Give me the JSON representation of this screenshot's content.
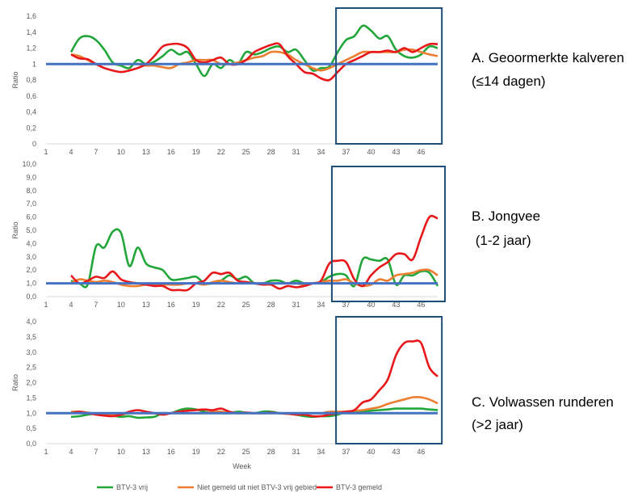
{
  "colors": {
    "green": "#22A63A",
    "orange": "#ED7D31",
    "red": "#E8181A",
    "baseline": "#4472C4",
    "highlight_box": "#1F4E79"
  },
  "labels": {
    "A_line1": "A. Geoormerkte kalveren",
    "A_line2": "(≤14 dagen)",
    "B_line1": "B. Jongvee",
    "B_line2": " (1-2 jaar)",
    "C_line1": "C. Volwassen runderen",
    "C_line2": "(>2 jaar)"
  },
  "legend": {
    "green": "BTV-3 vrij",
    "orange": "Niet gemeld uit niet BTV-3 vrij gebied",
    "red": "BTV-3 gemeld"
  },
  "chart_data": [
    {
      "type": "line",
      "title": "",
      "xlabel": "",
      "ylabel": "Ratio",
      "x_ticks": [
        "1",
        "4",
        "7",
        "10",
        "13",
        "16",
        "19",
        "22",
        "25",
        "28",
        "31",
        "34",
        "37",
        "40",
        "43",
        "46"
      ],
      "y_ticks": [
        "0",
        "0,2",
        "0,4",
        "0,6",
        "0,8",
        "1",
        "1,2",
        "1,4",
        "1,6"
      ],
      "ylim": [
        0,
        1.6
      ],
      "xlim": [
        1,
        48
      ],
      "reference_line": 1,
      "highlight_weeks": [
        35.8,
        48.5
      ],
      "series": [
        {
          "name": "BTV-3 vrij",
          "color": "green",
          "x": [
            4,
            5,
            6,
            7,
            8,
            9,
            10,
            11,
            12,
            13,
            14,
            15,
            16,
            17,
            18,
            19,
            20,
            21,
            22,
            23,
            24,
            25,
            26,
            27,
            28,
            29,
            30,
            31,
            32,
            33,
            34,
            35,
            36,
            37,
            38,
            39,
            40,
            41,
            42,
            43,
            44,
            45,
            46,
            47,
            48
          ],
          "y": [
            1.15,
            1.32,
            1.35,
            1.3,
            1.18,
            1.02,
            0.98,
            0.95,
            1.05,
            1.0,
            1.03,
            1.1,
            1.18,
            1.12,
            1.15,
            1.0,
            0.85,
            1.0,
            0.95,
            1.05,
            1.0,
            1.15,
            1.12,
            1.15,
            1.2,
            1.22,
            1.15,
            1.18,
            1.05,
            0.92,
            0.95,
            0.97,
            1.15,
            1.3,
            1.35,
            1.48,
            1.42,
            1.32,
            1.35,
            1.18,
            1.1,
            1.08,
            1.12,
            1.22,
            1.2
          ]
        },
        {
          "name": "Niet gemeld uit niet BTV-3 vrij gebied",
          "color": "orange",
          "x": [
            4,
            5,
            6,
            7,
            8,
            9,
            10,
            11,
            12,
            13,
            14,
            15,
            16,
            17,
            18,
            19,
            20,
            21,
            22,
            23,
            24,
            25,
            26,
            27,
            28,
            29,
            30,
            31,
            32,
            33,
            34,
            35,
            36,
            37,
            38,
            39,
            40,
            41,
            42,
            43,
            44,
            45,
            46,
            47,
            48
          ],
          "y": [
            1.12,
            1.1,
            1.05,
            1.0,
            1.0,
            1.0,
            1.0,
            1.0,
            1.0,
            0.98,
            0.98,
            0.96,
            0.95,
            1.0,
            1.02,
            1.05,
            1.05,
            1.05,
            1.0,
            1.0,
            1.02,
            1.05,
            1.08,
            1.1,
            1.15,
            1.15,
            1.12,
            1.05,
            1.0,
            0.95,
            0.92,
            0.95,
            1.0,
            1.05,
            1.1,
            1.15,
            1.15,
            1.15,
            1.15,
            1.15,
            1.18,
            1.18,
            1.15,
            1.12,
            1.1
          ]
        },
        {
          "name": "BTV-3 gemeld",
          "color": "red",
          "x": [
            4,
            5,
            6,
            7,
            8,
            9,
            10,
            11,
            12,
            13,
            14,
            15,
            16,
            17,
            18,
            19,
            20,
            21,
            22,
            23,
            24,
            25,
            26,
            27,
            28,
            29,
            30,
            31,
            32,
            33,
            34,
            35,
            36,
            37,
            38,
            39,
            40,
            41,
            42,
            43,
            44,
            45,
            46,
            47,
            48
          ],
          "y": [
            1.12,
            1.07,
            1.06,
            1.0,
            0.95,
            0.92,
            0.9,
            0.92,
            0.95,
            1.0,
            1.1,
            1.22,
            1.25,
            1.25,
            1.2,
            1.05,
            1.02,
            1.05,
            1.08,
            1.0,
            1.0,
            1.05,
            1.15,
            1.2,
            1.24,
            1.25,
            1.1,
            1.0,
            0.9,
            0.88,
            0.82,
            0.8,
            0.9,
            1.0,
            1.05,
            1.1,
            1.15,
            1.15,
            1.17,
            1.15,
            1.2,
            1.15,
            1.2,
            1.25,
            1.25
          ]
        }
      ]
    },
    {
      "type": "line",
      "title": "",
      "xlabel": "",
      "ylabel": "Ratio",
      "x_ticks": [
        "1",
        "4",
        "7",
        "10",
        "13",
        "16",
        "19",
        "22",
        "25",
        "28",
        "31",
        "34",
        "37",
        "40",
        "43",
        "46"
      ],
      "y_ticks": [
        "0,0",
        "1,0",
        "2,0",
        "3,0",
        "4,0",
        "5,0",
        "6,0",
        "7,0",
        "8,0",
        "9,0",
        "10,0"
      ],
      "ylim": [
        0,
        10
      ],
      "xlim": [
        1,
        48
      ],
      "reference_line": 1,
      "highlight_weeks": [
        35.3,
        50.5
      ],
      "series": [
        {
          "name": "BTV-3 vrij",
          "color": "green",
          "x": [
            4,
            5,
            6,
            7,
            8,
            9,
            10,
            11,
            12,
            13,
            14,
            15,
            16,
            17,
            18,
            19,
            20,
            21,
            22,
            23,
            24,
            25,
            26,
            27,
            28,
            29,
            30,
            31,
            32,
            33,
            34,
            35,
            36,
            37,
            38,
            39,
            40,
            41,
            42,
            43,
            44,
            45,
            46,
            47,
            48
          ],
          "y": [
            1.2,
            1.0,
            0.9,
            3.8,
            3.7,
            4.9,
            4.8,
            2.3,
            3.7,
            2.5,
            2.2,
            2.0,
            1.3,
            1.3,
            1.4,
            1.5,
            1.0,
            1.0,
            1.2,
            1.6,
            1.3,
            1.5,
            1.0,
            1.0,
            1.2,
            1.2,
            1.0,
            1.2,
            1.0,
            1.0,
            1.1,
            1.5,
            1.7,
            1.6,
            0.8,
            2.8,
            2.8,
            2.7,
            2.8,
            0.9,
            1.6,
            1.6,
            1.9,
            1.8,
            0.8
          ]
        },
        {
          "name": "Niet gemeld uit niet BTV-3 vrij gebied",
          "color": "orange",
          "x": [
            4,
            5,
            6,
            7,
            8,
            9,
            10,
            11,
            12,
            13,
            14,
            15,
            16,
            17,
            18,
            19,
            20,
            21,
            22,
            23,
            24,
            25,
            26,
            27,
            28,
            29,
            30,
            31,
            32,
            33,
            34,
            35,
            36,
            37,
            38,
            39,
            40,
            41,
            42,
            43,
            44,
            45,
            46,
            47,
            48
          ],
          "y": [
            1.0,
            1.3,
            1.2,
            1.1,
            1.2,
            1.1,
            0.9,
            0.8,
            0.8,
            0.9,
            0.9,
            0.9,
            0.9,
            0.9,
            1.0,
            1.0,
            0.9,
            1.1,
            1.2,
            1.1,
            1.0,
            1.1,
            1.0,
            1.0,
            1.0,
            1.0,
            1.0,
            1.0,
            0.9,
            1.0,
            1.1,
            1.2,
            1.2,
            1.3,
            1.0,
            0.8,
            0.9,
            1.3,
            1.2,
            1.6,
            1.7,
            1.8,
            2.0,
            2.0,
            1.6
          ]
        },
        {
          "name": "BTV-3 gemeld",
          "color": "red",
          "x": [
            4,
            5,
            6,
            7,
            8,
            9,
            10,
            11,
            12,
            13,
            14,
            15,
            16,
            17,
            18,
            19,
            20,
            21,
            22,
            23,
            24,
            25,
            26,
            27,
            28,
            29,
            30,
            31,
            32,
            33,
            34,
            35,
            36,
            37,
            38,
            39,
            40,
            41,
            42,
            43,
            44,
            45,
            46,
            47,
            48
          ],
          "y": [
            1.6,
            1.0,
            1.2,
            1.5,
            1.4,
            1.9,
            1.3,
            1.1,
            1.0,
            0.9,
            0.8,
            0.8,
            0.5,
            0.5,
            0.5,
            1.0,
            1.2,
            1.8,
            1.7,
            1.8,
            1.2,
            1.1,
            1.0,
            0.9,
            0.9,
            0.6,
            0.8,
            0.7,
            0.8,
            1.0,
            1.2,
            2.5,
            2.7,
            2.6,
            1.3,
            0.8,
            1.6,
            2.2,
            2.6,
            3.2,
            3.2,
            2.8,
            4.5,
            6.0,
            5.9
          ]
        }
      ]
    },
    {
      "type": "line",
      "title": "",
      "xlabel": "Week",
      "ylabel": "Ratio",
      "x_ticks": [
        "1",
        "4",
        "7",
        "10",
        "13",
        "16",
        "19",
        "22",
        "25",
        "28",
        "31",
        "34",
        "37",
        "40",
        "43",
        "46"
      ],
      "y_ticks": [
        "0,0",
        "0,5",
        "1,0",
        "1,5",
        "2,0",
        "2,5",
        "3,0",
        "3,5",
        "4,0"
      ],
      "ylim": [
        0,
        4
      ],
      "xlim": [
        1,
        48
      ],
      "reference_line": 1,
      "highlight_weeks": [
        35.8,
        48.5
      ],
      "series": [
        {
          "name": "BTV-3 vrij",
          "color": "green",
          "x": [
            4,
            5,
            6,
            7,
            8,
            9,
            10,
            11,
            12,
            13,
            14,
            15,
            16,
            17,
            18,
            19,
            20,
            21,
            22,
            23,
            24,
            25,
            26,
            27,
            28,
            29,
            30,
            31,
            32,
            33,
            34,
            35,
            36,
            37,
            38,
            39,
            40,
            41,
            42,
            43,
            44,
            45,
            46,
            47,
            48
          ],
          "y": [
            0.88,
            0.9,
            0.95,
            0.98,
            0.95,
            0.92,
            0.88,
            0.9,
            0.85,
            0.86,
            0.88,
            1.0,
            1.0,
            1.1,
            1.15,
            1.12,
            1.05,
            1.02,
            1.0,
            1.0,
            1.05,
            1.02,
            1.0,
            1.05,
            1.05,
            1.0,
            0.98,
            0.95,
            0.9,
            0.88,
            0.9,
            0.9,
            0.95,
            1.05,
            1.05,
            1.05,
            1.08,
            1.1,
            1.12,
            1.15,
            1.15,
            1.15,
            1.15,
            1.12,
            1.1
          ]
        },
        {
          "name": "Niet gemeld uit niet BTV-3 vrij gebied",
          "color": "orange",
          "x": [
            4,
            5,
            6,
            7,
            8,
            9,
            10,
            11,
            12,
            13,
            14,
            15,
            16,
            17,
            18,
            19,
            20,
            21,
            22,
            23,
            24,
            25,
            26,
            27,
            28,
            29,
            30,
            31,
            32,
            33,
            34,
            35,
            36,
            37,
            38,
            39,
            40,
            41,
            42,
            43,
            44,
            45,
            46,
            47,
            48
          ],
          "y": [
            1.05,
            1.05,
            1.02,
            0.98,
            0.95,
            0.95,
            0.95,
            1.0,
            1.0,
            1.0,
            1.0,
            1.0,
            1.0,
            1.0,
            1.0,
            1.0,
            1.0,
            1.05,
            1.05,
            1.02,
            1.0,
            1.0,
            1.0,
            1.0,
            1.0,
            1.0,
            0.98,
            1.0,
            1.0,
            1.0,
            1.0,
            1.05,
            1.05,
            1.05,
            1.08,
            1.1,
            1.15,
            1.2,
            1.3,
            1.38,
            1.45,
            1.52,
            1.52,
            1.45,
            1.32
          ]
        },
        {
          "name": "BTV-3 gemeld",
          "color": "red",
          "x": [
            4,
            5,
            6,
            7,
            8,
            9,
            10,
            11,
            12,
            13,
            14,
            15,
            16,
            17,
            18,
            19,
            20,
            21,
            22,
            23,
            24,
            25,
            26,
            27,
            28,
            29,
            30,
            31,
            32,
            33,
            34,
            35,
            36,
            37,
            38,
            39,
            40,
            41,
            42,
            43,
            44,
            45,
            46,
            47,
            48
          ],
          "y": [
            1.0,
            1.05,
            1.0,
            0.95,
            0.92,
            0.9,
            0.95,
            1.05,
            1.1,
            1.05,
            1.0,
            0.95,
            1.0,
            1.05,
            1.08,
            1.1,
            1.12,
            1.1,
            1.15,
            1.05,
            1.0,
            1.02,
            1.0,
            1.0,
            1.02,
            1.0,
            0.98,
            0.95,
            0.95,
            0.9,
            0.9,
            0.95,
            1.0,
            1.05,
            1.1,
            1.35,
            1.45,
            1.75,
            2.1,
            2.9,
            3.3,
            3.35,
            3.3,
            2.5,
            2.2
          ]
        }
      ]
    }
  ]
}
